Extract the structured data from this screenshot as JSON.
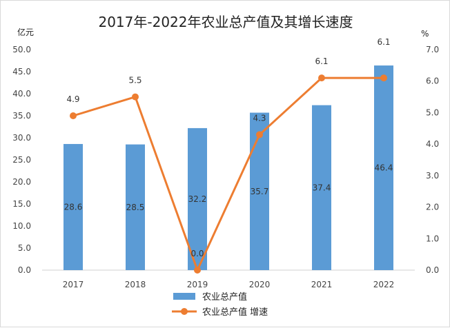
{
  "chart_data": {
    "type": "bar+line",
    "title": "2017年-2022年农业总产值及其增长速度",
    "left_unit": "亿元",
    "right_unit": "%",
    "categories": [
      "2017",
      "2018",
      "2019",
      "2020",
      "2021",
      "2022"
    ],
    "y_left": {
      "min": 0,
      "max": 50,
      "ticks": [
        "0.0",
        "5.0",
        "10.0",
        "15.0",
        "20.0",
        "25.0",
        "30.0",
        "35.0",
        "40.0",
        "45.0",
        "50.0"
      ]
    },
    "y_right": {
      "min": 0,
      "max": 7,
      "ticks": [
        "0.0",
        "1.0",
        "2.0",
        "3.0",
        "4.0",
        "5.0",
        "6.0",
        "7.0"
      ]
    },
    "series": [
      {
        "name": "农业总产值",
        "kind": "bar",
        "axis": "left",
        "color": "#5b9bd5",
        "values": [
          28.6,
          28.5,
          32.2,
          35.7,
          37.4,
          46.4
        ],
        "labels": [
          "28.6",
          "28.5",
          "32.2",
          "35.7",
          "37.4",
          "46.4"
        ]
      },
      {
        "name": "农业总产值 增速",
        "kind": "line",
        "axis": "right",
        "color": "#ed7d31",
        "values": [
          4.9,
          5.5,
          0.0,
          4.3,
          6.1,
          6.1
        ],
        "labels": [
          "4.9",
          "5.5",
          "0.0",
          "4.3",
          "6.1",
          "6.1"
        ]
      }
    ],
    "legend_position": "bottom-center",
    "grid": false
  }
}
